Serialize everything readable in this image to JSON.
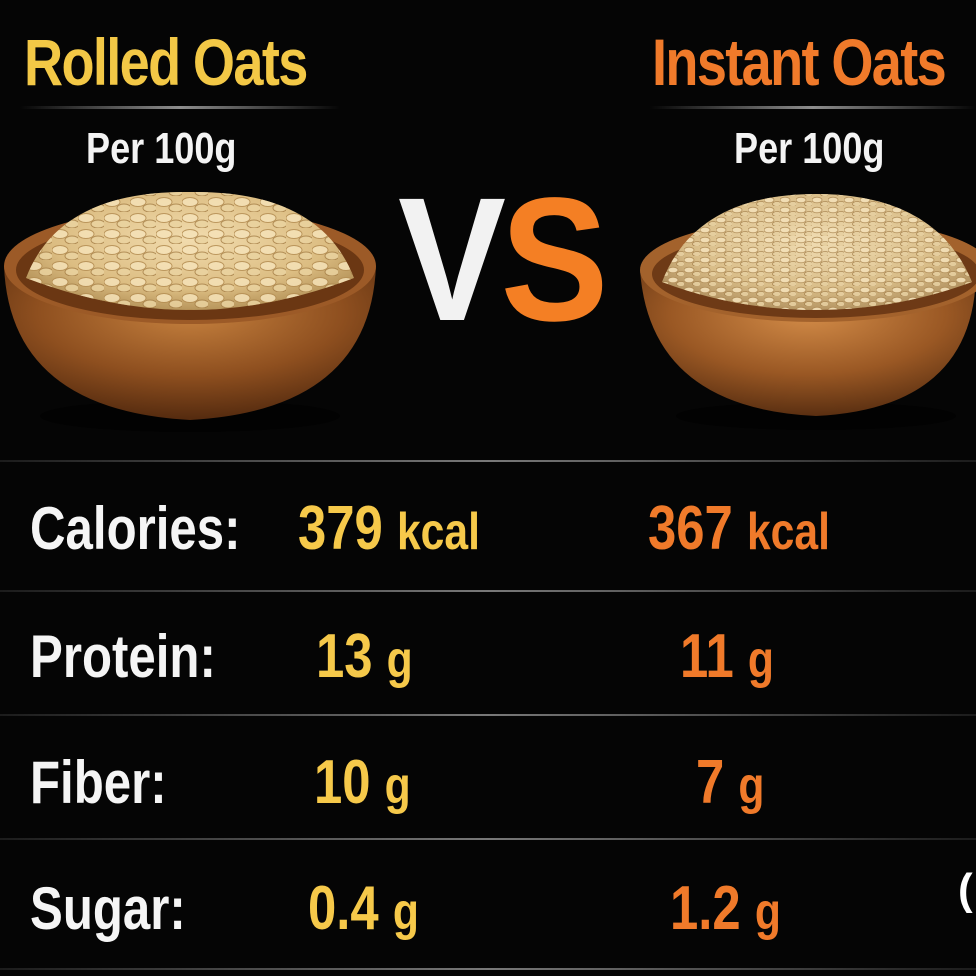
{
  "left": {
    "title": "Rolled Oats",
    "per": "Per 100g"
  },
  "right": {
    "title": "Instant Oats",
    "per": "Per 100g"
  },
  "vs": {
    "v": "V",
    "s": "S"
  },
  "colors": {
    "rolled_accent": "#f3c846",
    "instant_accent": "#f07a2a",
    "background": "#050505"
  },
  "rows": [
    {
      "label": "Calories:",
      "rolled_num": "379",
      "rolled_unit": "kcal",
      "instant_num": "367",
      "instant_unit": "kcal"
    },
    {
      "label": "Protein:",
      "rolled_num": "13",
      "rolled_unit": "g",
      "instant_num": "11",
      "instant_unit": "g"
    },
    {
      "label": "Fiber:",
      "rolled_num": "10",
      "rolled_unit": "g",
      "instant_num": "7",
      "instant_unit": "g"
    },
    {
      "label": "Sugar:",
      "rolled_num": "0.4",
      "rolled_unit": "g",
      "instant_num": "1.2",
      "instant_unit": "g"
    }
  ],
  "edge_char": "("
}
